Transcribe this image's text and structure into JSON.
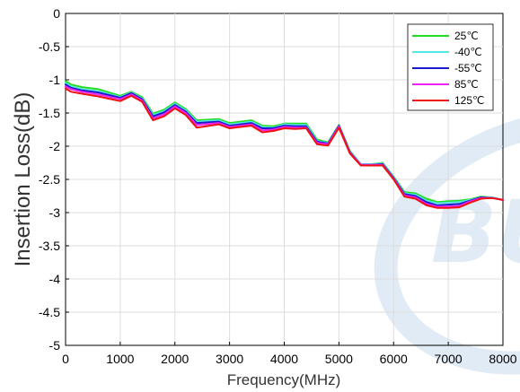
{
  "chart_data": {
    "type": "line",
    "xlabel": "Frequency(MHz)",
    "ylabel": "Insertion Loss(dB)",
    "xlim": [
      0,
      8000
    ],
    "ylim": [
      -5,
      0
    ],
    "xticks": [
      0,
      1000,
      2000,
      3000,
      4000,
      5000,
      6000,
      7000,
      8000
    ],
    "yticks": [
      0,
      -0.5,
      -1,
      -1.5,
      -2,
      -2.5,
      -3,
      -3.5,
      -4,
      -4.5,
      -5
    ],
    "grid": true,
    "legend_position": "top-right",
    "series": [
      {
        "name": "25℃",
        "color": "#22dd22",
        "x": [
          0,
          100,
          300,
          600,
          1000,
          1200,
          1400,
          1600,
          1800,
          2000,
          2200,
          2400,
          2800,
          3000,
          3200,
          3400,
          3600,
          3800,
          4000,
          4200,
          4400,
          4600,
          4800,
          5000,
          5200,
          5400,
          5600,
          5800,
          6000,
          6200,
          6400,
          6600,
          6800,
          7000,
          7200,
          7400,
          7600,
          7800,
          8000
        ],
        "y": [
          -1.02,
          -1.07,
          -1.11,
          -1.14,
          -1.24,
          -1.18,
          -1.26,
          -1.51,
          -1.45,
          -1.34,
          -1.44,
          -1.61,
          -1.59,
          -1.65,
          -1.63,
          -1.61,
          -1.69,
          -1.7,
          -1.66,
          -1.66,
          -1.66,
          -1.9,
          -1.94,
          -1.68,
          -2.07,
          -2.27,
          -2.27,
          -2.25,
          -2.46,
          -2.69,
          -2.71,
          -2.79,
          -2.84,
          -2.83,
          -2.82,
          -2.8,
          -2.76,
          -2.77,
          -2.81
        ]
      },
      {
        "name": "-40℃",
        "color": "#55e6e6",
        "x": [
          0,
          100,
          300,
          600,
          1000,
          1200,
          1400,
          1600,
          1800,
          2000,
          2200,
          2400,
          2800,
          3000,
          3200,
          3400,
          3600,
          3800,
          4000,
          4200,
          4400,
          4600,
          4800,
          5000,
          5200,
          5400,
          5600,
          5800,
          6000,
          6200,
          6400,
          6600,
          6800,
          7000,
          7200,
          7400,
          7600,
          7800,
          8000
        ],
        "y": [
          -1.05,
          -1.1,
          -1.14,
          -1.17,
          -1.26,
          -1.19,
          -1.28,
          -1.53,
          -1.47,
          -1.36,
          -1.46,
          -1.63,
          -1.61,
          -1.67,
          -1.65,
          -1.63,
          -1.71,
          -1.72,
          -1.67,
          -1.68,
          -1.68,
          -1.92,
          -1.95,
          -1.69,
          -2.08,
          -2.27,
          -2.27,
          -2.26,
          -2.47,
          -2.71,
          -2.73,
          -2.82,
          -2.86,
          -2.85,
          -2.84,
          -2.81,
          -2.77,
          -2.77,
          -2.81
        ]
      },
      {
        "name": "-55℃",
        "color": "#1a1acc",
        "x": [
          0,
          100,
          300,
          600,
          1000,
          1200,
          1400,
          1600,
          1800,
          2000,
          2200,
          2400,
          2800,
          3000,
          3200,
          3400,
          3600,
          3800,
          4000,
          4200,
          4400,
          4600,
          4800,
          5000,
          5200,
          5400,
          5600,
          5800,
          6000,
          6200,
          6400,
          6600,
          6800,
          7000,
          7200,
          7400,
          7600,
          7800,
          8000
        ],
        "y": [
          -1.07,
          -1.12,
          -1.16,
          -1.19,
          -1.27,
          -1.2,
          -1.29,
          -1.55,
          -1.49,
          -1.38,
          -1.48,
          -1.65,
          -1.63,
          -1.69,
          -1.67,
          -1.65,
          -1.73,
          -1.73,
          -1.69,
          -1.7,
          -1.7,
          -1.93,
          -1.96,
          -1.69,
          -2.09,
          -2.28,
          -2.28,
          -2.27,
          -2.48,
          -2.72,
          -2.75,
          -2.84,
          -2.89,
          -2.88,
          -2.87,
          -2.82,
          -2.77,
          -2.78,
          -2.81
        ]
      },
      {
        "name": "85℃",
        "color": "#ee22ee",
        "x": [
          0,
          100,
          300,
          600,
          1000,
          1200,
          1400,
          1600,
          1800,
          2000,
          2200,
          2400,
          2800,
          3000,
          3200,
          3400,
          3600,
          3800,
          4000,
          4200,
          4400,
          4600,
          4800,
          5000,
          5200,
          5400,
          5600,
          5800,
          6000,
          6200,
          6400,
          6600,
          6800,
          7000,
          7200,
          7400,
          7600,
          7800,
          8000
        ],
        "y": [
          -1.1,
          -1.14,
          -1.18,
          -1.22,
          -1.29,
          -1.22,
          -1.31,
          -1.58,
          -1.52,
          -1.4,
          -1.5,
          -1.68,
          -1.65,
          -1.71,
          -1.69,
          -1.67,
          -1.76,
          -1.75,
          -1.71,
          -1.72,
          -1.72,
          -1.95,
          -1.97,
          -1.7,
          -2.1,
          -2.28,
          -2.28,
          -2.28,
          -2.49,
          -2.74,
          -2.77,
          -2.87,
          -2.91,
          -2.91,
          -2.9,
          -2.83,
          -2.78,
          -2.78,
          -2.81
        ]
      },
      {
        "name": "125℃",
        "color": "#ee1111",
        "x": [
          0,
          100,
          300,
          600,
          1000,
          1200,
          1400,
          1600,
          1800,
          2000,
          2200,
          2400,
          2800,
          3000,
          3200,
          3400,
          3600,
          3800,
          4000,
          4200,
          4400,
          4600,
          4800,
          5000,
          5200,
          5400,
          5600,
          5800,
          6000,
          6200,
          6400,
          6600,
          6800,
          7000,
          7200,
          7400,
          7600,
          7800,
          8000
        ],
        "y": [
          -1.13,
          -1.18,
          -1.21,
          -1.25,
          -1.32,
          -1.24,
          -1.33,
          -1.61,
          -1.55,
          -1.43,
          -1.53,
          -1.72,
          -1.67,
          -1.73,
          -1.71,
          -1.69,
          -1.79,
          -1.77,
          -1.73,
          -1.74,
          -1.73,
          -1.97,
          -1.99,
          -1.72,
          -2.11,
          -2.29,
          -2.29,
          -2.29,
          -2.5,
          -2.76,
          -2.79,
          -2.89,
          -2.93,
          -2.93,
          -2.92,
          -2.85,
          -2.79,
          -2.78,
          -2.81
        ]
      }
    ]
  },
  "watermark": {
    "text": "BU",
    "color": "#c7dcee"
  }
}
